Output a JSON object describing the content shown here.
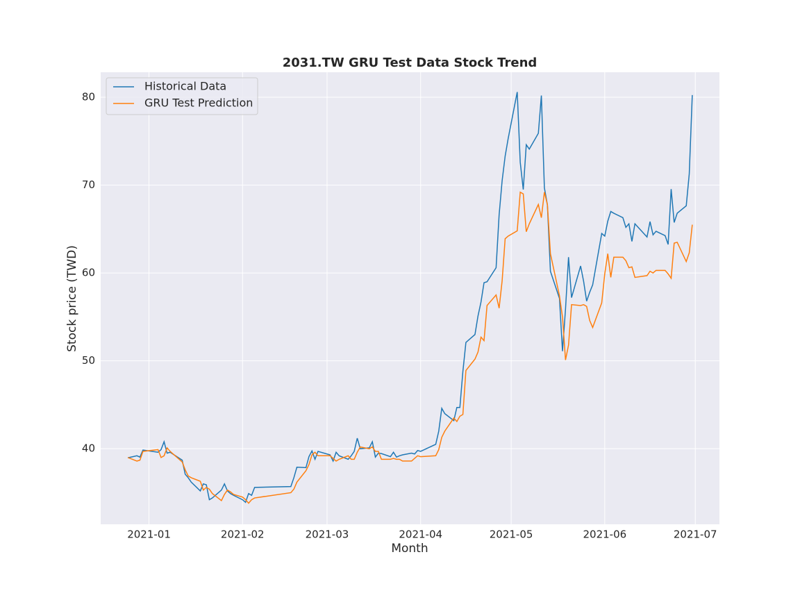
{
  "chart_data": {
    "type": "line",
    "title": "2031.TW  GRU Test Data Stock Trend",
    "x_label": "Month",
    "y_label": "Stock price (TWD)",
    "x": [
      "2020-12-25",
      "2020-12-28",
      "2020-12-29",
      "2020-12-30",
      "2021-01-04",
      "2021-01-05",
      "2021-01-06",
      "2021-01-07",
      "2021-01-08",
      "2021-01-12",
      "2021-01-13",
      "2021-01-14",
      "2021-01-15",
      "2021-01-18",
      "2021-01-19",
      "2021-01-20",
      "2021-01-21",
      "2021-01-22",
      "2021-01-25",
      "2021-01-26",
      "2021-01-27",
      "2021-01-28",
      "2021-01-29",
      "2021-02-01",
      "2021-02-02",
      "2021-02-03",
      "2021-02-04",
      "2021-02-05",
      "2021-02-17",
      "2021-02-18",
      "2021-02-19",
      "2021-02-22",
      "2021-02-23",
      "2021-02-24",
      "2021-02-25",
      "2021-02-26",
      "2021-03-02",
      "2021-03-03",
      "2021-03-04",
      "2021-03-05",
      "2021-03-08",
      "2021-03-09",
      "2021-03-10",
      "2021-03-11",
      "2021-03-12",
      "2021-03-15",
      "2021-03-16",
      "2021-03-17",
      "2021-03-18",
      "2021-03-19",
      "2021-03-22",
      "2021-03-23",
      "2021-03-24",
      "2021-03-25",
      "2021-03-26",
      "2021-03-29",
      "2021-03-30",
      "2021-03-31",
      "2021-04-01",
      "2021-04-06",
      "2021-04-07",
      "2021-04-08",
      "2021-04-09",
      "2021-04-12",
      "2021-04-13",
      "2021-04-14",
      "2021-04-15",
      "2021-04-16",
      "2021-04-19",
      "2021-04-20",
      "2021-04-21",
      "2021-04-22",
      "2021-04-23",
      "2021-04-26",
      "2021-04-27",
      "2021-04-28",
      "2021-04-29",
      "2021-04-30",
      "2021-05-03",
      "2021-05-04",
      "2021-05-05",
      "2021-05-06",
      "2021-05-07",
      "2021-05-10",
      "2021-05-11",
      "2021-05-12",
      "2021-05-13",
      "2021-05-14",
      "2021-05-17",
      "2021-05-18",
      "2021-05-19",
      "2021-05-20",
      "2021-05-21",
      "2021-05-24",
      "2021-05-25",
      "2021-05-26",
      "2021-05-27",
      "2021-05-28",
      "2021-05-31",
      "2021-06-01",
      "2021-06-02",
      "2021-06-03",
      "2021-06-04",
      "2021-06-07",
      "2021-06-08",
      "2021-06-09",
      "2021-06-10",
      "2021-06-11",
      "2021-06-15",
      "2021-06-16",
      "2021-06-17",
      "2021-06-18",
      "2021-06-21",
      "2021-06-22",
      "2021-06-23",
      "2021-06-24",
      "2021-06-25",
      "2021-06-28",
      "2021-06-29",
      "2021-06-30"
    ],
    "series": [
      {
        "name": "Historical Data",
        "color": "#1f77b4",
        "values": [
          38.97,
          39.2,
          39.05,
          39.85,
          39.6,
          39.9,
          40.8,
          39.5,
          39.6,
          38.7,
          37.1,
          36.7,
          36.2,
          35.2,
          36.0,
          35.9,
          34.2,
          34.4,
          35.3,
          36.0,
          35.2,
          34.9,
          34.7,
          34.2,
          33.9,
          34.9,
          34.7,
          35.6,
          35.7,
          36.7,
          37.9,
          37.85,
          39.1,
          39.75,
          38.8,
          39.7,
          39.3,
          38.6,
          39.6,
          39.2,
          38.8,
          39.2,
          39.7,
          41.2,
          40.0,
          40.1,
          40.8,
          39.05,
          39.5,
          39.45,
          39.1,
          39.6,
          39.05,
          39.2,
          39.3,
          39.5,
          39.4,
          39.8,
          39.7,
          40.5,
          42.0,
          44.6,
          44.0,
          43.2,
          44.7,
          44.7,
          48.8,
          52.1,
          53.0,
          55.1,
          56.7,
          58.9,
          59.0,
          60.6,
          66.6,
          70.5,
          73.3,
          75.3,
          80.6,
          72.6,
          69.5,
          74.6,
          74.1,
          75.9,
          80.2,
          69.7,
          67.75,
          60.2,
          57.1,
          51.1,
          55.9,
          61.8,
          57.2,
          60.8,
          59.05,
          56.8,
          57.8,
          58.65,
          64.5,
          64.2,
          65.9,
          67.0,
          66.8,
          66.3,
          65.2,
          65.6,
          63.6,
          65.6,
          64.1,
          65.85,
          64.35,
          64.75,
          64.25,
          63.25,
          69.55,
          65.75,
          66.8,
          67.65,
          71.3,
          80.25
        ]
      },
      {
        "name": "GRU Test Prediction",
        "color": "#ff7f0e",
        "values": [
          39.0,
          38.6,
          38.7,
          39.7,
          39.9,
          39.0,
          39.2,
          40.1,
          39.7,
          38.5,
          37.6,
          36.9,
          36.7,
          36.3,
          35.3,
          35.6,
          35.4,
          34.9,
          34.1,
          34.8,
          35.3,
          35.1,
          34.8,
          34.5,
          34.2,
          33.8,
          34.2,
          34.4,
          35.0,
          35.4,
          36.2,
          37.5,
          38.2,
          39.3,
          39.6,
          39.2,
          39.2,
          38.9,
          38.6,
          38.8,
          39.2,
          38.8,
          38.8,
          39.6,
          40.2,
          40.0,
          40.2,
          39.7,
          39.7,
          38.8,
          38.8,
          38.9,
          38.8,
          38.8,
          38.6,
          38.6,
          38.9,
          39.2,
          39.1,
          39.2,
          39.9,
          41.3,
          42.0,
          43.5,
          43.1,
          43.7,
          43.9,
          48.9,
          50.2,
          51.0,
          52.7,
          52.3,
          56.3,
          57.5,
          56.0,
          59.1,
          63.9,
          64.2,
          64.8,
          69.2,
          69.0,
          64.7,
          65.6,
          67.8,
          66.3,
          69.2,
          67.8,
          62.2,
          57.4,
          55.0,
          50.1,
          51.8,
          56.4,
          56.3,
          56.4,
          56.2,
          54.6,
          53.8,
          56.6,
          59.9,
          62.2,
          59.5,
          61.8,
          61.8,
          61.4,
          60.6,
          60.7,
          59.5,
          59.7,
          60.2,
          60.0,
          60.3,
          60.3,
          59.9,
          59.4,
          63.4,
          63.5,
          61.3,
          62.3,
          65.5
        ]
      }
    ],
    "xlim": [
      "2020-12-16",
      "2021-07-09"
    ],
    "xticks": [
      {
        "value": "2021-01-01",
        "label": "2021-01"
      },
      {
        "value": "2021-02-01",
        "label": "2021-02"
      },
      {
        "value": "2021-03-01",
        "label": "2021-03"
      },
      {
        "value": "2021-04-01",
        "label": "2021-04"
      },
      {
        "value": "2021-05-01",
        "label": "2021-05"
      },
      {
        "value": "2021-06-01",
        "label": "2021-06"
      },
      {
        "value": "2021-07-01",
        "label": "2021-07"
      }
    ],
    "ylim": [
      31.4,
      82.85
    ],
    "yticks": [
      40,
      50,
      60,
      70,
      80
    ],
    "grid": true,
    "legend": "upper left"
  }
}
